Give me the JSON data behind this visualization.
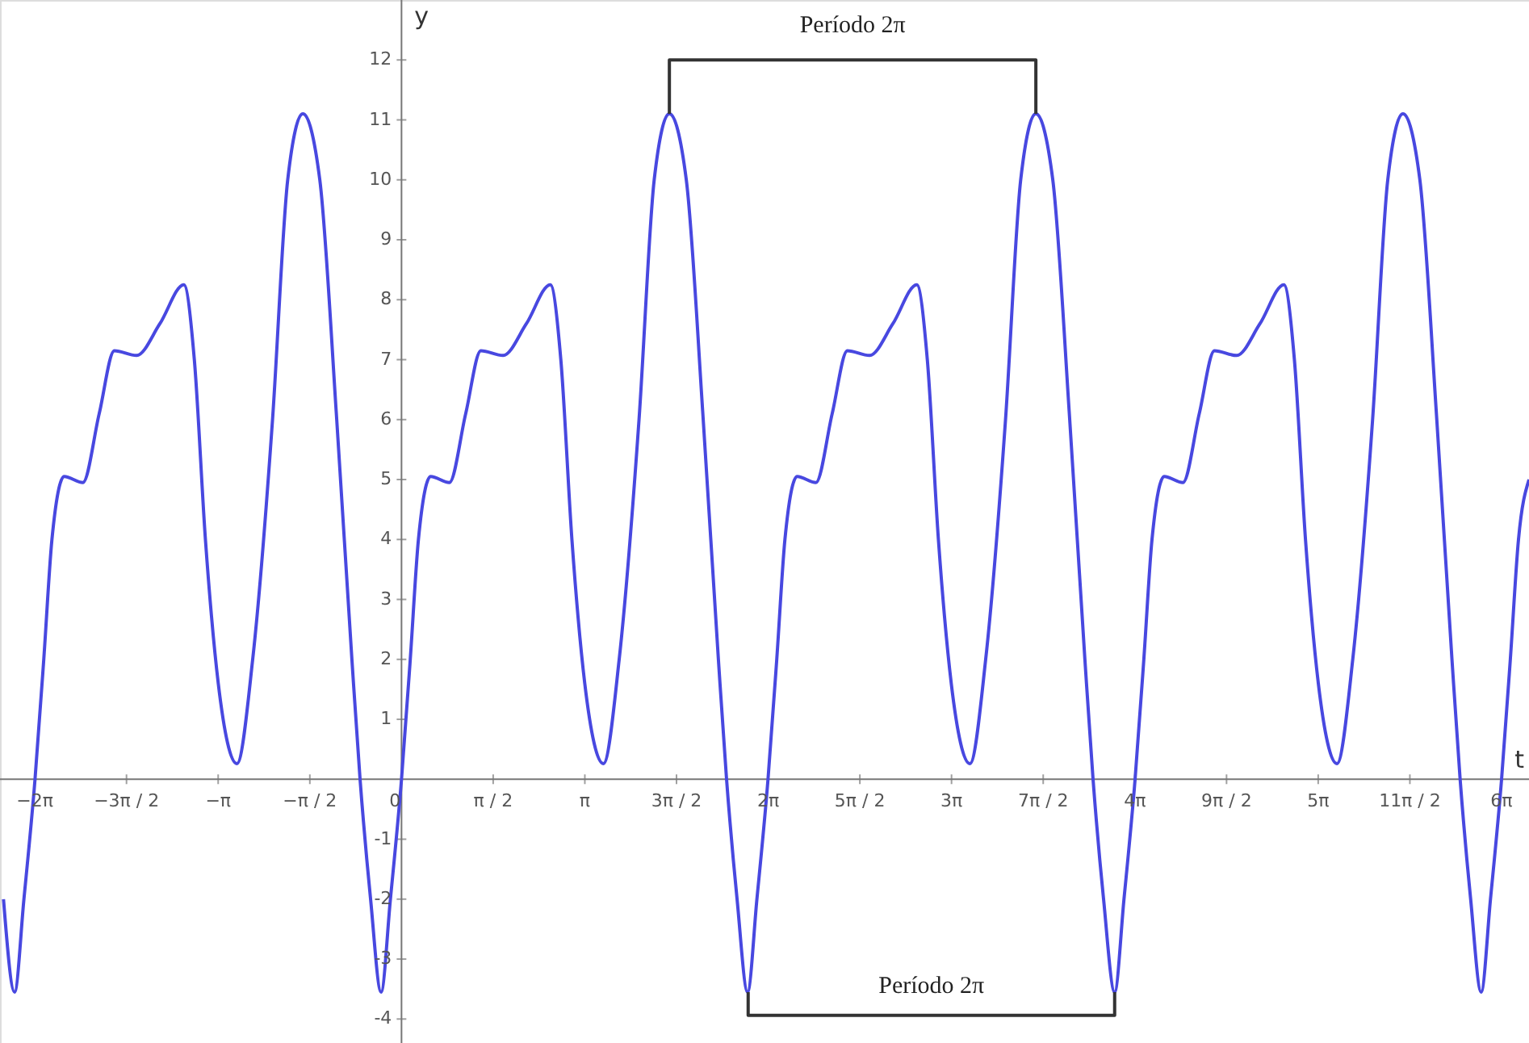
{
  "chart_data": {
    "type": "line",
    "xlabel": "t",
    "ylabel": "y",
    "xlim": [
      -6.88,
      19.32
    ],
    "ylim": [
      -4.4,
      13
    ],
    "xticks": [
      {
        "value": -6.2832,
        "label": "−2π"
      },
      {
        "value": -4.7124,
        "label": "−3π / 2"
      },
      {
        "value": -3.1416,
        "label": "−π"
      },
      {
        "value": -1.5708,
        "label": "−π / 2"
      },
      0,
      {
        "value": 1.5708,
        "label": "π / 2"
      },
      {
        "value": 3.1416,
        "label": "π"
      },
      {
        "value": 4.7124,
        "label": "3π / 2"
      },
      {
        "value": 6.2832,
        "label": "2π"
      },
      {
        "value": 7.854,
        "label": "5π / 2"
      },
      {
        "value": 9.4248,
        "label": "3π"
      },
      {
        "value": 10.9956,
        "label": "7π / 2"
      },
      {
        "value": 12.5664,
        "label": "4π"
      },
      {
        "value": 14.1372,
        "label": "9π / 2"
      },
      {
        "value": 15.708,
        "label": "5π"
      },
      {
        "value": 17.2788,
        "label": "11π / 2"
      },
      {
        "value": 18.8496,
        "label": "6π"
      }
    ],
    "yticks": [
      -4,
      -3,
      -2,
      -1,
      1,
      2,
      3,
      4,
      5,
      6,
      7,
      8,
      9,
      10,
      11,
      12
    ],
    "grid": false,
    "marker": "none",
    "line_style": "solid",
    "series": [
      {
        "color": "#4848e0",
        "x": [
          -6.82,
          -6.63,
          -6.47,
          -6.28,
          -6.13,
          -5.99,
          -5.78,
          -5.46,
          -5.18,
          -4.92,
          -4.54,
          -4.14,
          -3.73,
          -3.55,
          -3.36,
          -3.14,
          -2.82,
          -2.55,
          -2.21,
          -1.95,
          -1.69,
          -1.4,
          -1.11,
          -0.85,
          -0.71,
          -0.53,
          -0.35,
          -0.19,
          0,
          0.15,
          0.29,
          0.5,
          0.82,
          1.1,
          1.36,
          1.74,
          2.14,
          2.55,
          2.73,
          2.92,
          3.14,
          3.46,
          3.73,
          4.07,
          4.33,
          4.59,
          4.88,
          5.17,
          5.43,
          5.57,
          5.75,
          5.93,
          6.09,
          6.28,
          6.43,
          6.57,
          6.78,
          7.1,
          7.38,
          7.64,
          8.02,
          8.42,
          8.83,
          9.01,
          9.2,
          9.42,
          9.74,
          10.01,
          10.35,
          10.61,
          10.87,
          11.16,
          11.45,
          11.71,
          11.85,
          12.03,
          12.22,
          12.38,
          12.57,
          12.72,
          12.86,
          13.07,
          13.39,
          13.67,
          13.93,
          14.31,
          14.71,
          15.12,
          15.3,
          15.49,
          15.71,
          16.03,
          16.3,
          16.64,
          16.9,
          17.16,
          17.45,
          17.74,
          18.0,
          18.14,
          18.32,
          18.5,
          18.66,
          18.85,
          19.0,
          19.14,
          19.32
        ],
        "values": [
          -2,
          -3.55,
          -2,
          0,
          2,
          4,
          5.05,
          4.95,
          6.1,
          7.15,
          7.07,
          7.6,
          8.25,
          7,
          4,
          1.6,
          0.26,
          2,
          6,
          10,
          11.1,
          10,
          6,
          2,
          0,
          -2,
          -3.55,
          -2,
          0,
          2,
          4,
          5.05,
          4.95,
          6.1,
          7.15,
          7.07,
          7.6,
          8.25,
          7,
          4,
          1.6,
          0.26,
          2,
          6,
          10,
          11.1,
          10,
          6,
          2,
          0,
          -2,
          -3.55,
          -2,
          0,
          2,
          4,
          5.05,
          4.95,
          6.1,
          7.15,
          7.07,
          7.6,
          8.25,
          7,
          4,
          1.6,
          0.26,
          2,
          6,
          10,
          11.1,
          10,
          6,
          2,
          0,
          -2,
          -3.55,
          -2,
          0,
          2,
          4,
          5.05,
          4.95,
          6.1,
          7.15,
          7.07,
          7.6,
          8.25,
          7,
          4,
          1.6,
          0.26,
          2,
          6,
          10,
          11.1,
          10,
          6,
          2,
          0,
          -2,
          -3.55,
          -2,
          0,
          2,
          4,
          5.0
        ]
      },
      {
        "type": "line",
        "color": "#333333",
        "x": [
          4.59,
          4.59,
          10.87,
          10.87
        ],
        "values": [
          11.1,
          12,
          12,
          11.1
        ]
      },
      {
        "type": "line",
        "color": "#333333",
        "x": [
          5.94,
          5.94,
          12.22,
          12.22
        ],
        "values": [
          -3.55,
          -3.94,
          -3.94,
          -3.55
        ]
      }
    ],
    "annotations": [
      "Período 2π",
      "Período 2π"
    ]
  }
}
